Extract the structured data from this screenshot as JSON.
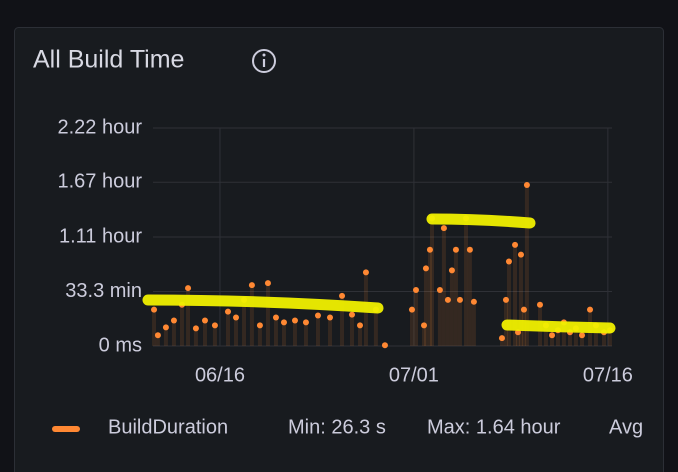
{
  "chart_data": {
    "type": "scatter",
    "title": "All Build Time",
    "series": [
      {
        "name": "BuildDuration",
        "color": "#ff8833",
        "x": [
          10.9,
          11.2,
          11.82,
          12.44,
          13.06,
          13.53,
          14.14,
          14.84,
          15.61,
          16.62,
          17.24,
          17.86,
          18.47,
          19.09,
          19.71,
          20.33,
          20.95,
          21.8,
          22.65,
          23.58,
          24.51,
          25.44,
          26.21,
          26.83,
          27.29,
          28.06,
          28.76,
          30.85,
          31.16,
          31.78,
          31.93,
          32.24,
          32.4,
          33.01,
          33.32,
          33.63,
          33.94,
          34.25,
          34.56,
          35.03,
          35.33,
          35.64,
          37.81,
          38.12,
          38.35,
          38.82,
          39.05,
          39.28,
          39.51,
          39.74,
          40.75,
          41.21,
          41.68,
          42.14,
          42.6,
          43.07,
          43.53,
          44.0,
          44.62,
          45.08,
          45.7,
          46.16
        ],
        "values": [
          0.37,
          0.11,
          0.19,
          0.26,
          0.42,
          0.59,
          0.18,
          0.26,
          0.21,
          0.35,
          0.29,
          0.47,
          0.62,
          0.21,
          0.64,
          0.29,
          0.24,
          0.26,
          0.24,
          0.31,
          0.29,
          0.51,
          0.32,
          0.21,
          0.75,
          0.37,
          0.0073,
          0.37,
          0.57,
          0.21,
          0.79,
          0.98,
          1.3,
          0.57,
          1.2,
          0.47,
          0.77,
          0.98,
          0.47,
          1.3,
          0.98,
          0.45,
          0.08,
          0.47,
          0.86,
          1.03,
          0.14,
          0.93,
          0.37,
          1.64,
          0.42,
          0.21,
          0.11,
          0.16,
          0.24,
          0.14,
          0.18,
          0.11,
          0.37,
          0.21,
          0.14,
          0.16
        ]
      }
    ],
    "xlim": [
      10.82,
      46.32
    ],
    "xticks": [
      {
        "value": 16,
        "label": "06/16"
      },
      {
        "value": 31,
        "label": "07/01"
      },
      {
        "value": 46,
        "label": "07/16"
      }
    ],
    "ylim": [
      0,
      2.22
    ],
    "yticks": [
      {
        "value": 0,
        "label": "0 ms"
      },
      {
        "value": 0.555,
        "label": "33.3 min"
      },
      {
        "value": 1.11,
        "label": "1.11 hour"
      },
      {
        "value": 1.667,
        "label": "1.67 hour"
      },
      {
        "value": 2.22,
        "label": "2.22 hour"
      }
    ],
    "grid": true,
    "legend_stats": [
      "Min: 26.3 s",
      "Max: 1.64 hour",
      "Avg"
    ]
  }
}
